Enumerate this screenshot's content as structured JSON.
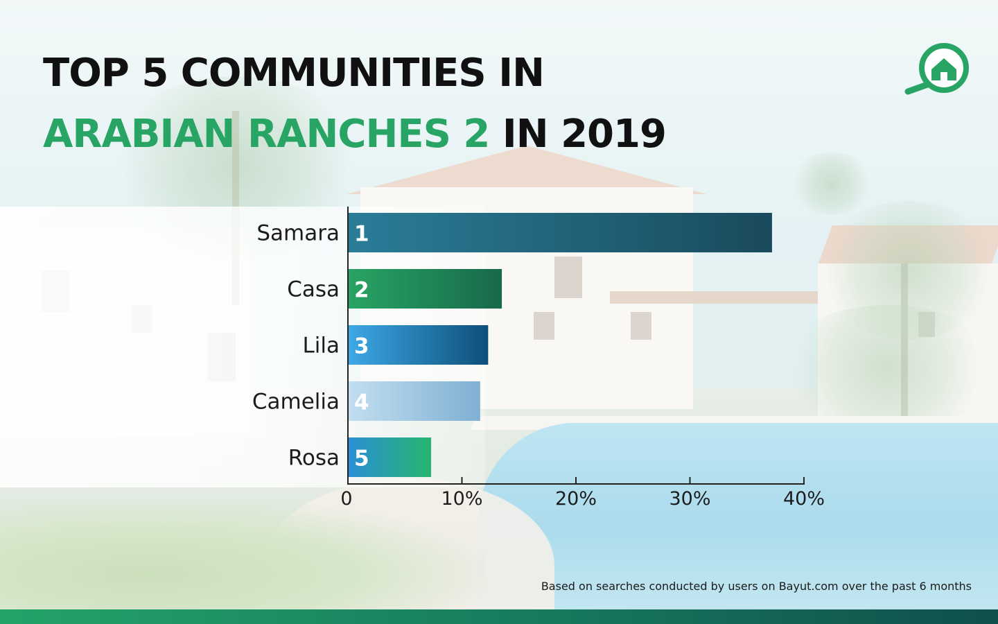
{
  "title": {
    "line1": "TOP 5 COMMUNITIES IN",
    "line2_highlight": "ARABIAN RANCHES 2",
    "line2_rest": " IN 2019",
    "highlight_color": "#28a464"
  },
  "logo": {
    "icon": "house-search-icon",
    "color": "#28a464"
  },
  "chart_data": {
    "type": "bar",
    "orientation": "horizontal",
    "categories": [
      "Samara",
      "Casa",
      "Lila",
      "Camelia",
      "Rosa"
    ],
    "ranks": [
      "1",
      "2",
      "3",
      "4",
      "5"
    ],
    "values": [
      37.2,
      13.5,
      12.3,
      11.6,
      7.3
    ],
    "xlim": [
      0,
      40
    ],
    "xticks": [
      0,
      10,
      20,
      30,
      40
    ],
    "xtick_labels": [
      "0",
      "10%",
      "20%",
      "30%",
      "40%"
    ],
    "grid": false,
    "bar_gradients": [
      [
        "#2a7d98",
        "#1a4a5c"
      ],
      [
        "#28a464",
        "#17694a"
      ],
      [
        "#3ea8e6",
        "#0d4f7a"
      ],
      [
        "#c2def0",
        "#7fb0d4"
      ],
      [
        "#2a8fd6",
        "#27b56e"
      ]
    ]
  },
  "footnote": "Based on searches conducted by users on Bayut.com over the past 6 months"
}
